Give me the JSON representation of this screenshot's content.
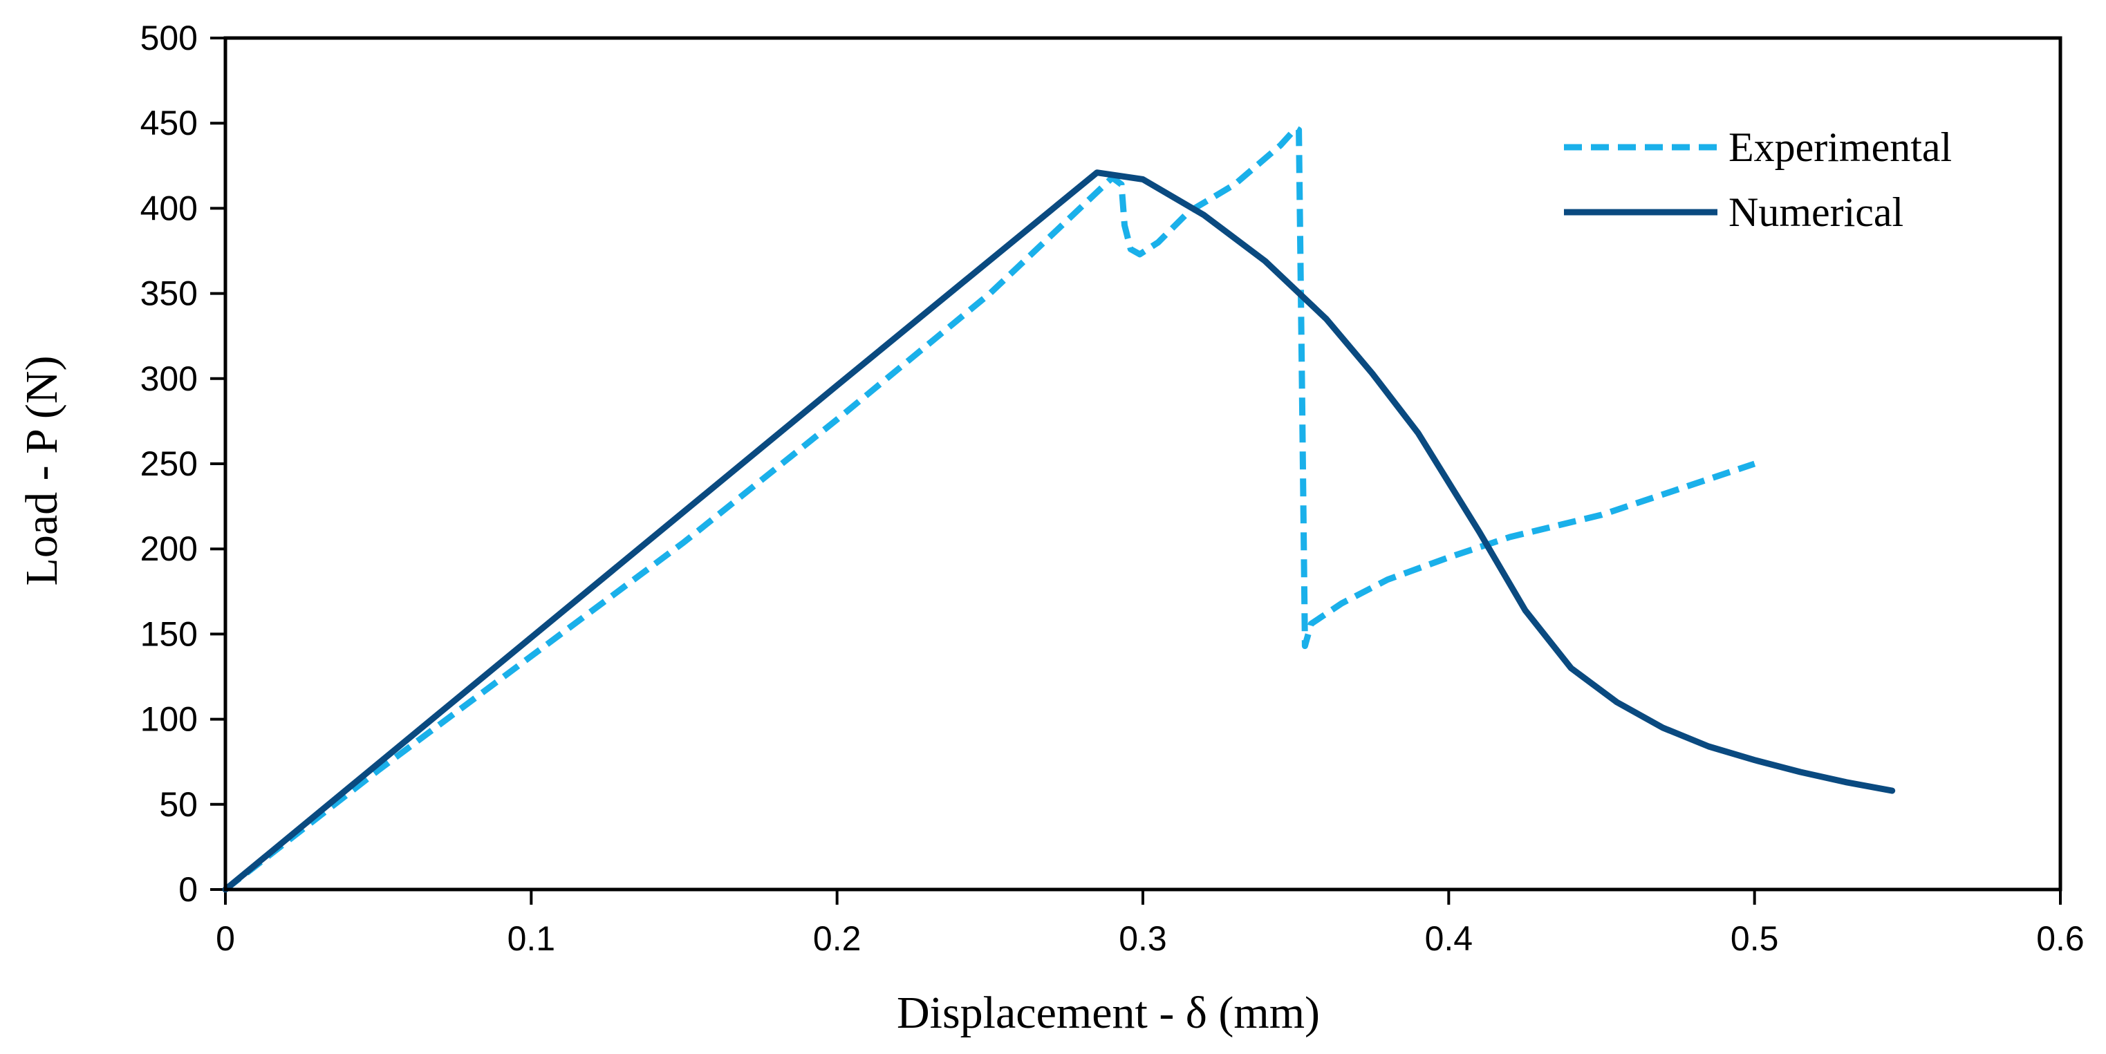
{
  "chart_data": {
    "type": "line",
    "title": "",
    "xlabel": "Displacement - δ (mm)",
    "ylabel": "Load - P (N)",
    "xlim": [
      0,
      0.6
    ],
    "ylim": [
      0,
      500
    ],
    "xticks": [
      0,
      0.1,
      0.2,
      0.3,
      0.4,
      0.5,
      0.6
    ],
    "xtick_labels": [
      "0",
      "0.1",
      "0.2",
      "0.3",
      "0.4",
      "0.5",
      "0.6"
    ],
    "yticks": [
      0,
      50,
      100,
      150,
      200,
      250,
      300,
      350,
      400,
      450,
      500
    ],
    "ytick_labels": [
      "0",
      "50",
      "100",
      "150",
      "200",
      "250",
      "300",
      "350",
      "400",
      "450",
      "500"
    ],
    "grid": false,
    "legend_position": "top-right",
    "series": [
      {
        "name": "Experimental",
        "color": "#1ab0ea",
        "style": "dashed",
        "points": [
          [
            0,
            0
          ],
          [
            0.05,
            70
          ],
          [
            0.1,
            137
          ],
          [
            0.15,
            204
          ],
          [
            0.2,
            276
          ],
          [
            0.25,
            350
          ],
          [
            0.29,
            418
          ],
          [
            0.293,
            414
          ],
          [
            0.294,
            390
          ],
          [
            0.296,
            376
          ],
          [
            0.299,
            373
          ],
          [
            0.305,
            380
          ],
          [
            0.315,
            398
          ],
          [
            0.33,
            414
          ],
          [
            0.345,
            437
          ],
          [
            0.35,
            447
          ],
          [
            0.351,
            446
          ],
          [
            0.352,
            300
          ],
          [
            0.353,
            143
          ],
          [
            0.355,
            156
          ],
          [
            0.365,
            168
          ],
          [
            0.38,
            182
          ],
          [
            0.4,
            195
          ],
          [
            0.42,
            207
          ],
          [
            0.45,
            220
          ],
          [
            0.47,
            232
          ],
          [
            0.5,
            250
          ]
        ]
      },
      {
        "name": "Numerical",
        "color": "#0a4a80",
        "style": "solid",
        "points": [
          [
            0,
            0
          ],
          [
            0.1,
            148
          ],
          [
            0.2,
            296
          ],
          [
            0.285,
            421
          ],
          [
            0.3,
            417
          ],
          [
            0.32,
            396
          ],
          [
            0.34,
            369
          ],
          [
            0.36,
            335
          ],
          [
            0.375,
            303
          ],
          [
            0.39,
            268
          ],
          [
            0.41,
            210
          ],
          [
            0.425,
            164
          ],
          [
            0.44,
            130
          ],
          [
            0.455,
            110
          ],
          [
            0.47,
            95
          ],
          [
            0.485,
            84
          ],
          [
            0.5,
            76
          ],
          [
            0.515,
            69
          ],
          [
            0.53,
            63
          ],
          [
            0.545,
            58
          ]
        ]
      }
    ]
  }
}
